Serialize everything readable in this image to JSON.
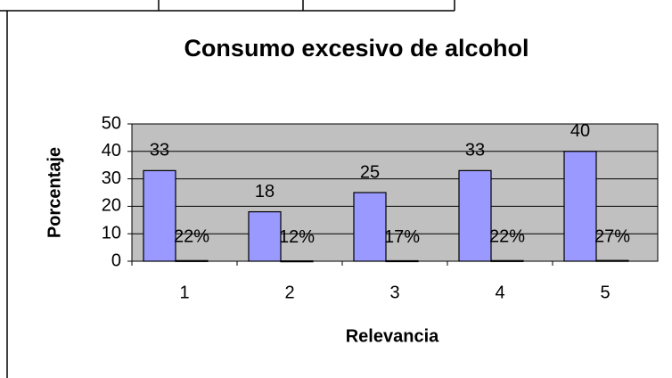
{
  "chart_data": {
    "type": "bar",
    "title": "Consumo excesivo de alcohol",
    "x_label": "Relevancia",
    "y_label": "Porcentaje",
    "categories": [
      "1",
      "2",
      "3",
      "4",
      "5"
    ],
    "series": [
      {
        "color": "#9999ff",
        "values": [
          33,
          18,
          25,
          33,
          40
        ]
      },
      {
        "color": "#000000",
        "values": [
          0.22,
          0.12,
          0.17,
          0.22,
          0.27
        ],
        "value_labels": [
          "22%",
          "12%",
          "17%",
          "22%",
          "27%"
        ]
      }
    ],
    "ylim": [
      0,
      50
    ],
    "yticks": [
      0,
      10,
      20,
      30,
      40,
      50
    ],
    "grid": true,
    "plot_background": "#c0c0c0"
  }
}
